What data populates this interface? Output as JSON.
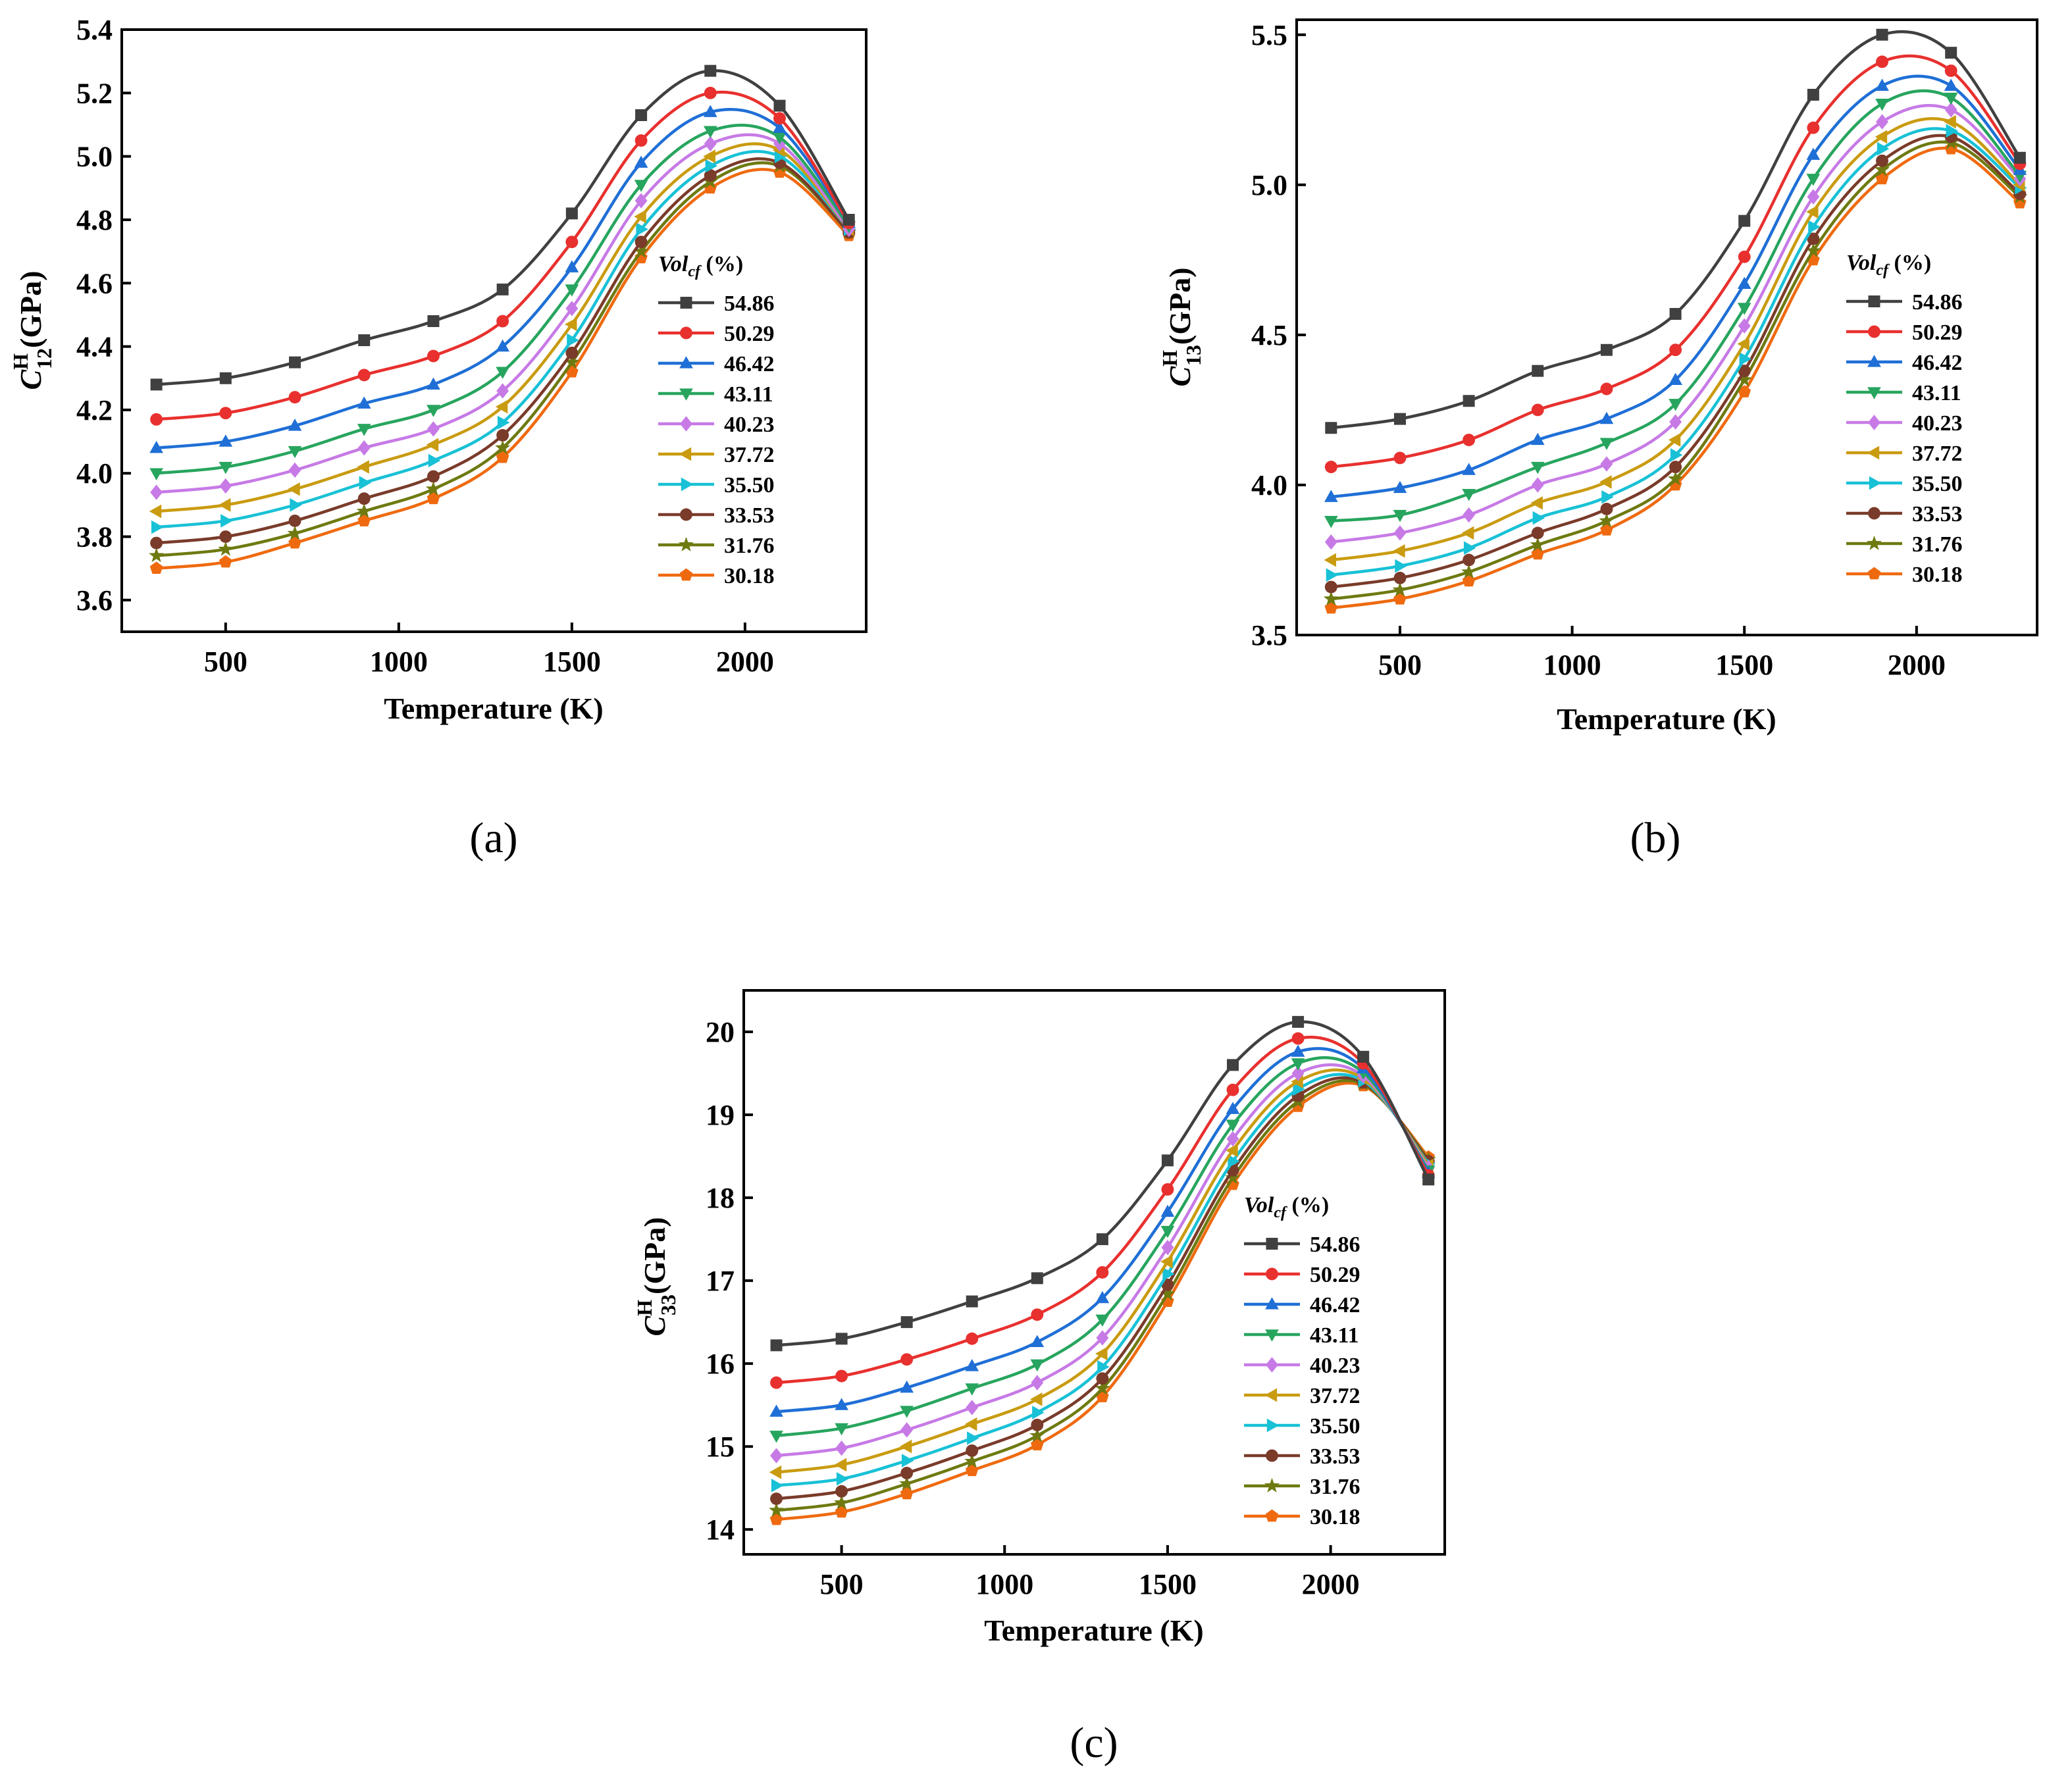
{
  "series_names": [
    "54.86",
    "50.29",
    "46.42",
    "43.11",
    "40.23",
    "37.72",
    "35.50",
    "33.53",
    "31.76",
    "30.18"
  ],
  "series_colors": [
    "#404040",
    "#e8302e",
    "#1f6fd6",
    "#27a55e",
    "#c77ae6",
    "#c99b10",
    "#18c1d6",
    "#7a3b2a",
    "#6e7a10",
    "#ef6a0f"
  ],
  "series_markers": [
    "square",
    "circle",
    "triangle-up",
    "triangle-down",
    "diamond",
    "triangle-left",
    "triangle-right",
    "circle",
    "star",
    "pentagon"
  ],
  "legend_title_main": "Vol",
  "legend_title_sub": "cf",
  "legend_title_suffix": " (%)",
  "chart_data": [
    {
      "type": "line",
      "panel_label": "(a)",
      "title": "",
      "xlabel": "Temperature (K)",
      "ylabel_symbol": "C",
      "ylabel_sup": "H",
      "ylabel_sub": "12",
      "ylabel_unit": "(GPa)",
      "xlim": [
        200,
        2350
      ],
      "ylim": [
        3.5,
        5.4
      ],
      "xticks": [
        500,
        1000,
        1500,
        2000
      ],
      "yticks": [
        3.6,
        3.8,
        4.0,
        4.2,
        4.4,
        4.6,
        4.8,
        5.0,
        5.2,
        5.4
      ],
      "ytick_labels": [
        "3.6",
        "3.8",
        "4.0",
        "4.2",
        "4.4",
        "4.6",
        "4.8",
        "5.0",
        "5.2",
        "5.4"
      ],
      "xtick_labels": [
        "500",
        "1000",
        "1500",
        "2000"
      ],
      "x": [
        300,
        500,
        700,
        900,
        1100,
        1300,
        1500,
        1700,
        1900,
        2100,
        2300
      ],
      "series": [
        {
          "name": "54.86",
          "values": [
            4.28,
            4.3,
            4.35,
            4.42,
            4.48,
            4.58,
            4.82,
            5.13,
            5.27,
            5.16,
            4.8
          ]
        },
        {
          "name": "50.29",
          "values": [
            4.17,
            4.19,
            4.24,
            4.31,
            4.37,
            4.48,
            4.73,
            5.05,
            5.2,
            5.12,
            4.79
          ]
        },
        {
          "name": "46.42",
          "values": [
            4.08,
            4.1,
            4.15,
            4.22,
            4.28,
            4.4,
            4.65,
            4.98,
            5.14,
            5.09,
            4.79
          ]
        },
        {
          "name": "43.11",
          "values": [
            4.0,
            4.02,
            4.07,
            4.14,
            4.2,
            4.32,
            4.58,
            4.91,
            5.08,
            5.06,
            4.78
          ]
        },
        {
          "name": "40.23",
          "values": [
            3.94,
            3.96,
            4.01,
            4.08,
            4.14,
            4.26,
            4.52,
            4.86,
            5.04,
            5.04,
            4.77
          ]
        },
        {
          "name": "37.72",
          "values": [
            3.88,
            3.9,
            3.95,
            4.02,
            4.09,
            4.21,
            4.47,
            4.81,
            5.0,
            5.02,
            4.77
          ]
        },
        {
          "name": "35.50",
          "values": [
            3.83,
            3.85,
            3.9,
            3.97,
            4.04,
            4.16,
            4.42,
            4.77,
            4.97,
            5.0,
            4.77
          ]
        },
        {
          "name": "33.53",
          "values": [
            3.78,
            3.8,
            3.85,
            3.92,
            3.99,
            4.12,
            4.38,
            4.73,
            4.94,
            4.98,
            4.76
          ]
        },
        {
          "name": "31.76",
          "values": [
            3.74,
            3.76,
            3.81,
            3.88,
            3.95,
            4.08,
            4.35,
            4.7,
            4.92,
            4.97,
            4.76
          ]
        },
        {
          "name": "30.18",
          "values": [
            3.7,
            3.72,
            3.78,
            3.85,
            3.92,
            4.05,
            4.32,
            4.68,
            4.9,
            4.95,
            4.75
          ]
        }
      ]
    },
    {
      "type": "line",
      "panel_label": "(b)",
      "title": "",
      "xlabel": "Temperature (K)",
      "ylabel_symbol": "C",
      "ylabel_sup": "H",
      "ylabel_sub": "13",
      "ylabel_unit": "(GPa)",
      "xlim": [
        200,
        2350
      ],
      "ylim": [
        3.5,
        5.55
      ],
      "xticks": [
        500,
        1000,
        1500,
        2000
      ],
      "yticks": [
        3.5,
        4.0,
        4.5,
        5.0,
        5.5
      ],
      "ytick_labels": [
        "3.5",
        "4.0",
        "4.5",
        "5.0",
        "5.5"
      ],
      "xtick_labels": [
        "500",
        "1000",
        "1500",
        "2000"
      ],
      "x": [
        300,
        500,
        700,
        900,
        1100,
        1300,
        1500,
        1700,
        1900,
        2100,
        2300
      ],
      "series": [
        {
          "name": "54.86",
          "values": [
            4.19,
            4.22,
            4.28,
            4.38,
            4.45,
            4.57,
            4.88,
            5.3,
            5.5,
            5.44,
            5.09
          ]
        },
        {
          "name": "50.29",
          "values": [
            4.06,
            4.09,
            4.15,
            4.25,
            4.32,
            4.45,
            4.76,
            5.19,
            5.41,
            5.38,
            5.07
          ]
        },
        {
          "name": "46.42",
          "values": [
            3.96,
            3.99,
            4.05,
            4.15,
            4.22,
            4.35,
            4.67,
            5.1,
            5.33,
            5.33,
            5.05
          ]
        },
        {
          "name": "43.11",
          "values": [
            3.88,
            3.9,
            3.97,
            4.06,
            4.14,
            4.27,
            4.59,
            5.02,
            5.27,
            5.29,
            5.03
          ]
        },
        {
          "name": "40.23",
          "values": [
            3.81,
            3.84,
            3.9,
            4.0,
            4.07,
            4.21,
            4.53,
            4.96,
            5.21,
            5.25,
            5.02
          ]
        },
        {
          "name": "37.72",
          "values": [
            3.75,
            3.78,
            3.84,
            3.94,
            4.01,
            4.15,
            4.47,
            4.91,
            5.16,
            5.21,
            5.0
          ]
        },
        {
          "name": "35.50",
          "values": [
            3.7,
            3.73,
            3.79,
            3.89,
            3.96,
            4.1,
            4.42,
            4.86,
            5.12,
            5.18,
            4.99
          ]
        },
        {
          "name": "33.53",
          "values": [
            3.66,
            3.69,
            3.75,
            3.84,
            3.92,
            4.06,
            4.38,
            4.82,
            5.08,
            5.16,
            4.97
          ]
        },
        {
          "name": "31.76",
          "values": [
            3.62,
            3.65,
            3.71,
            3.8,
            3.88,
            4.02,
            4.35,
            4.78,
            5.05,
            5.14,
            4.96
          ]
        },
        {
          "name": "30.18",
          "values": [
            3.59,
            3.62,
            3.68,
            3.77,
            3.85,
            4.0,
            4.31,
            4.75,
            5.02,
            5.12,
            4.94
          ]
        }
      ]
    },
    {
      "type": "line",
      "panel_label": "(c)",
      "title": "",
      "xlabel": "Temperature (K)",
      "ylabel_symbol": "C",
      "ylabel_sup": "H",
      "ylabel_sub": "33",
      "ylabel_unit": "(GPa)",
      "xlim": [
        200,
        2350
      ],
      "ylim": [
        13.7,
        20.5
      ],
      "xticks": [
        500,
        1000,
        1500,
        2000
      ],
      "yticks": [
        14,
        15,
        16,
        17,
        18,
        19,
        20
      ],
      "ytick_labels": [
        "14",
        "15",
        "16",
        "17",
        "18",
        "19",
        "20"
      ],
      "xtick_labels": [
        "500",
        "1000",
        "1500",
        "2000"
      ],
      "x": [
        300,
        500,
        700,
        900,
        1100,
        1300,
        1500,
        1700,
        1900,
        2100,
        2300
      ],
      "series": [
        {
          "name": "54.86",
          "values": [
            16.22,
            16.3,
            16.5,
            16.75,
            17.03,
            17.5,
            18.45,
            19.6,
            20.12,
            19.7,
            18.22
          ]
        },
        {
          "name": "50.29",
          "values": [
            15.77,
            15.85,
            16.05,
            16.3,
            16.59,
            17.1,
            18.1,
            19.3,
            19.92,
            19.62,
            18.27
          ]
        },
        {
          "name": "46.42",
          "values": [
            15.42,
            15.5,
            15.71,
            15.97,
            16.26,
            16.79,
            17.83,
            19.07,
            19.76,
            19.56,
            18.3
          ]
        },
        {
          "name": "43.11",
          "values": [
            15.13,
            15.22,
            15.43,
            15.7,
            15.99,
            16.53,
            17.6,
            18.88,
            19.62,
            19.51,
            18.33
          ]
        },
        {
          "name": "40.23",
          "values": [
            14.89,
            14.98,
            15.2,
            15.47,
            15.77,
            16.31,
            17.4,
            18.71,
            19.5,
            19.47,
            18.36
          ]
        },
        {
          "name": "37.72",
          "values": [
            14.69,
            14.78,
            15.0,
            15.27,
            15.57,
            16.12,
            17.23,
            18.57,
            19.4,
            19.44,
            18.39
          ]
        },
        {
          "name": "35.50",
          "values": [
            14.53,
            14.61,
            14.83,
            15.1,
            15.41,
            15.96,
            17.08,
            18.44,
            19.31,
            19.41,
            18.41
          ]
        },
        {
          "name": "33.53",
          "values": [
            14.37,
            14.46,
            14.68,
            14.95,
            15.26,
            15.82,
            16.95,
            18.33,
            19.23,
            19.39,
            18.44
          ]
        },
        {
          "name": "31.76",
          "values": [
            14.23,
            14.32,
            14.55,
            14.82,
            15.13,
            15.7,
            16.84,
            18.24,
            19.16,
            19.37,
            18.46
          ]
        },
        {
          "name": "30.18",
          "values": [
            14.12,
            14.21,
            14.43,
            14.71,
            15.02,
            15.6,
            16.75,
            18.16,
            19.1,
            19.35,
            18.49
          ]
        }
      ]
    }
  ]
}
